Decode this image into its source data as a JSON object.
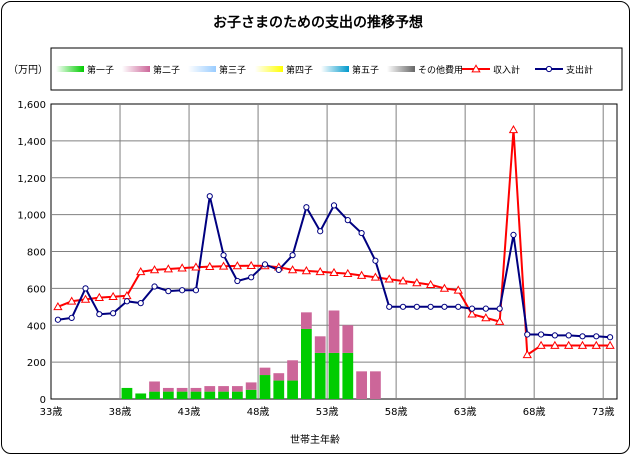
{
  "chart_data": {
    "type": "bar+line",
    "title": "お子さまのための支出の推移予想",
    "unit_label": "（万円）",
    "xlabel": "世帯主年齢",
    "ylim": [
      0,
      1600
    ],
    "yticks": [
      "0",
      "200",
      "400",
      "600",
      "800",
      "1,000",
      "1,200",
      "1,400",
      "1,600"
    ],
    "ytick_values": [
      0,
      200,
      400,
      600,
      800,
      1000,
      1200,
      1400,
      1600
    ],
    "x_start_age": 33,
    "x_end_age": 74,
    "x_ticks": [
      {
        "age": 33,
        "label": "33歳"
      },
      {
        "age": 38,
        "label": "38歳"
      },
      {
        "age": 43,
        "label": "43歳"
      },
      {
        "age": 48,
        "label": "48歳"
      },
      {
        "age": 53,
        "label": "53歳"
      },
      {
        "age": 58,
        "label": "58歳"
      },
      {
        "age": 63,
        "label": "63歳"
      },
      {
        "age": 68,
        "label": "68歳"
      },
      {
        "age": 73,
        "label": "73歳"
      }
    ],
    "grid": true,
    "legend_position": "top",
    "ages": [
      33,
      34,
      35,
      36,
      37,
      38,
      39,
      40,
      41,
      42,
      43,
      44,
      45,
      46,
      47,
      48,
      49,
      50,
      51,
      52,
      53,
      54,
      55,
      56,
      57,
      58,
      59,
      60,
      61,
      62,
      63,
      64,
      65,
      66,
      67,
      68,
      69,
      70,
      71,
      72,
      73
    ],
    "bar_series": [
      {
        "name": "第一子",
        "color": "#00cc00",
        "values": [
          0,
          0,
          0,
          0,
          0,
          60,
          30,
          40,
          40,
          40,
          40,
          40,
          40,
          40,
          50,
          130,
          100,
          100,
          380,
          250,
          250,
          250,
          0,
          0,
          0,
          0,
          0,
          0,
          0,
          0,
          0,
          0,
          0,
          0,
          0,
          0,
          0,
          0,
          0,
          0,
          0
        ]
      },
      {
        "name": "第二子",
        "color": "#cc6699",
        "values": [
          0,
          0,
          0,
          0,
          0,
          0,
          0,
          55,
          20,
          20,
          20,
          30,
          30,
          30,
          40,
          40,
          40,
          110,
          90,
          90,
          230,
          150,
          150,
          150,
          0,
          0,
          0,
          0,
          0,
          0,
          0,
          0,
          0,
          0,
          0,
          0,
          0,
          0,
          0,
          0,
          0
        ]
      },
      {
        "name": "第三子",
        "color": "#99ccff",
        "values": []
      },
      {
        "name": "第四子",
        "color": "#ffff00",
        "values": []
      },
      {
        "name": "第五子",
        "color": "#0099cc",
        "values": []
      },
      {
        "name": "その他費用",
        "color": "#666666",
        "values": []
      }
    ],
    "line_series": [
      {
        "name": "収入計",
        "color": "#ff0000",
        "marker": "triangle",
        "values": [
          500,
          530,
          540,
          550,
          555,
          560,
          690,
          700,
          705,
          710,
          715,
          718,
          720,
          722,
          723,
          722,
          715,
          700,
          695,
          690,
          685,
          680,
          670,
          660,
          650,
          640,
          630,
          620,
          600,
          590,
          460,
          440,
          420,
          1460,
          240,
          290,
          290,
          290,
          290,
          290,
          290
        ]
      },
      {
        "name": "支出計",
        "color": "#000080",
        "marker": "circle",
        "values": [
          430,
          440,
          600,
          460,
          465,
          530,
          520,
          610,
          585,
          590,
          590,
          1100,
          780,
          640,
          660,
          730,
          700,
          780,
          1040,
          910,
          1050,
          970,
          900,
          750,
          500,
          500,
          500,
          500,
          500,
          500,
          490,
          490,
          490,
          890,
          350,
          350,
          345,
          345,
          340,
          340,
          335
        ]
      }
    ]
  }
}
